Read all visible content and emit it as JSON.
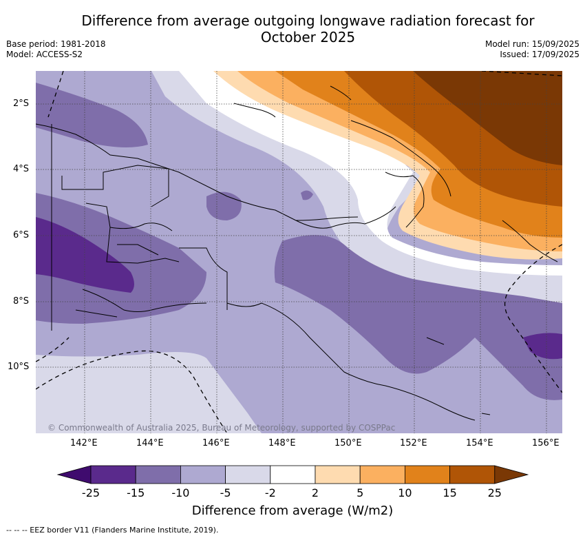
{
  "title": "Difference from average outgoing longwave radiation forecast for October 2025",
  "meta_left": [
    "Base period: 1981-2018",
    "Model: ACCESS-S2"
  ],
  "meta_right": [
    "Model run: 15/09/2025",
    "Issued: 17/09/2025"
  ],
  "latitude_labels": [
    "2°S",
    "4°S",
    "6°S",
    "8°S",
    "10°S"
  ],
  "longitude_labels": [
    "142°E",
    "144°E",
    "146°E",
    "148°E",
    "150°E",
    "152°E",
    "154°E",
    "156°E"
  ],
  "copyright": "© Commonwealth of Australia 2025, Bureau of Meteorology, supported by COSPPac",
  "colorbar": {
    "ticks": [
      "-25",
      "-15",
      "-10",
      "-5",
      "-2",
      "2",
      "5",
      "10",
      "15",
      "25"
    ],
    "colors": [
      "#3f0b6e",
      "#5a2a8c",
      "#7f6eaa",
      "#aea9d1",
      "#d9d9e9",
      "#ffffff",
      "#fedbb0",
      "#fbb060",
      "#e1821b",
      "#b05506",
      "#7a3805"
    ],
    "label": "Difference from average (W/m2)"
  },
  "footer": "--  --  -- EEZ border V11 (Flanders Marine Institute, 2019)."
}
